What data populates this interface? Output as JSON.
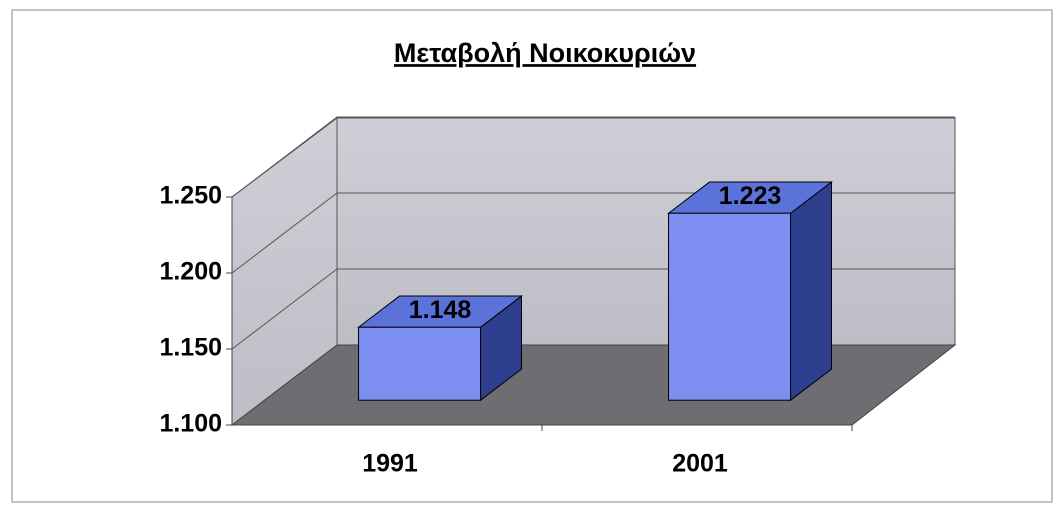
{
  "chart_data": {
    "type": "bar3d",
    "title": "Μεταβολή Νοικοκυριών",
    "categories": [
      "1991",
      "2001"
    ],
    "values": [
      1148,
      1223
    ],
    "value_labels": [
      "1.148",
      "1.223"
    ],
    "color": "#7d8ff0",
    "ylim": [
      1100,
      1250
    ],
    "yticks": [
      {
        "value": 1100,
        "label": "1.100"
      },
      {
        "value": 1150,
        "label": "1.150"
      },
      {
        "value": 1200,
        "label": "1.200"
      },
      {
        "value": 1250,
        "label": "1.250"
      }
    ],
    "grid": true
  }
}
